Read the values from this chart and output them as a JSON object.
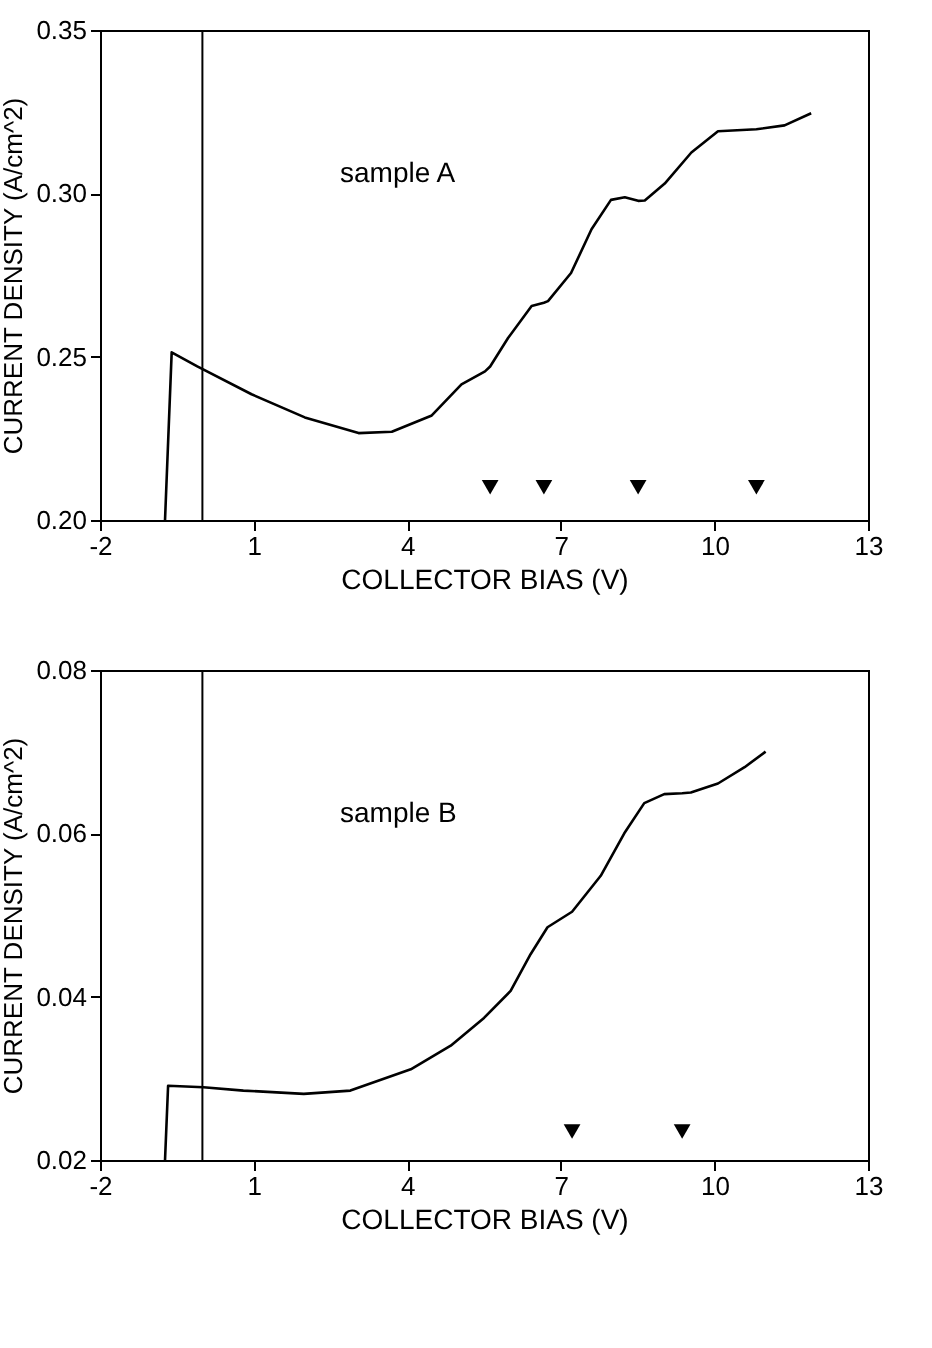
{
  "chart_data": [
    {
      "type": "line",
      "xlabel": "COLLECTOR BIAS (V)",
      "ylabel": "CURRENT DENSITY (A/cm^2)",
      "xlim": [
        -2,
        13
      ],
      "xticks": [
        -2,
        1,
        4,
        7,
        10,
        13
      ],
      "ylim": [
        0.2,
        0.35
      ],
      "yticks": [
        {
          "value": 0.2,
          "label": "0.20"
        },
        0.25,
        {
          "value": 0.3,
          "label": "0.30"
        },
        0.35
      ],
      "grid": false,
      "series": [
        {
          "color": "#000000",
          "x": [
            -0.73,
            -0.6,
            -0.1,
            0.96,
            2.0,
            3.05,
            3.7,
            4.48,
            5.06,
            5.52,
            5.62,
            5.97,
            6.43,
            6.67,
            6.75,
            7.2,
            7.6,
            7.98,
            8.25,
            8.51,
            8.64,
            9.03,
            9.55,
            10.07,
            10.82,
            11.37,
            11.89
          ],
          "values": [
            0.2,
            0.2513,
            0.247,
            0.2385,
            0.2314,
            0.2266,
            0.227,
            0.232,
            0.2415,
            0.2455,
            0.247,
            0.2557,
            0.2655,
            0.2665,
            0.267,
            0.2756,
            0.289,
            0.298,
            0.2988,
            0.2977,
            0.2978,
            0.303,
            0.3125,
            0.319,
            0.3196,
            0.3208,
            0.3245
          ]
        },
        {
          "type": "scatter",
          "marker": "triangle",
          "color": "#000000",
          "x": [
            5.62,
            6.67,
            8.51,
            10.82
          ],
          "values": [
            0.21,
            0.21,
            0.21,
            0.21
          ]
        }
      ],
      "ref_lines": [
        {
          "axis": "x",
          "value": 0,
          "color": "#000000"
        }
      ],
      "annotations": [
        "sample A"
      ]
    },
    {
      "type": "line",
      "xlabel": "COLLECTOR BIAS (V)",
      "ylabel": "CURRENT DENSITY (A/cm^2)",
      "xlim": [
        -2,
        13
      ],
      "xticks": [
        -2,
        1,
        4,
        7,
        10,
        13
      ],
      "ylim": [
        0.02,
        0.08
      ],
      "yticks": [
        0.02,
        0.04,
        0.06,
        0.08
      ],
      "grid": false,
      "series": [
        {
          "color": "#000000",
          "x": [
            -0.73,
            -0.67,
            0.02,
            0.8,
            1.98,
            2.89,
            4.07,
            4.85,
            5.5,
            6.02,
            6.41,
            6.74,
            7.22,
            7.78,
            8.24,
            8.63,
            9.02,
            9.37,
            9.54,
            10.07,
            10.59,
            11.0
          ],
          "values": [
            0.02,
            0.0291,
            0.0289,
            0.0285,
            0.0281,
            0.0285,
            0.0311,
            0.034,
            0.0374,
            0.0407,
            0.0452,
            0.0485,
            0.0504,
            0.0548,
            0.06,
            0.0637,
            0.0648,
            0.0649,
            0.065,
            0.0661,
            0.0681,
            0.07
          ]
        },
        {
          "type": "scatter",
          "marker": "triangle",
          "color": "#000000",
          "x": [
            7.22,
            9.37
          ],
          "values": [
            0.0235,
            0.0235
          ]
        }
      ],
      "ref_lines": [
        {
          "axis": "x",
          "value": 0,
          "color": "#000000"
        }
      ],
      "annotations": [
        "sample B"
      ]
    }
  ]
}
